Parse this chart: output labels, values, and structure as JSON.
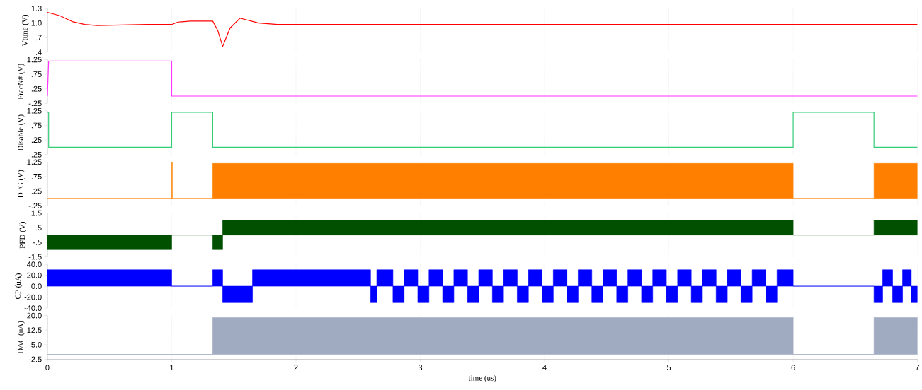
{
  "chart_data": [
    {
      "type": "line",
      "ylabel": "Vtune (V)",
      "color": "#ff0000",
      "grid": "x",
      "tick_labels": "y",
      "xlim": [
        0,
        7
      ],
      "xticks": [
        0,
        1,
        2,
        3,
        4,
        5,
        6,
        7
      ],
      "ylim": [
        0.4,
        1.3
      ],
      "yticks": [
        {
          "value": 1.3,
          "label": "1.3"
        },
        {
          "value": 1.0,
          "label": "1.0"
        },
        {
          "value": 0.7,
          "label": ".7"
        },
        {
          "value": 0.4,
          "label": ".4"
        }
      ],
      "x": [
        0,
        0.1,
        0.2,
        0.3,
        0.4,
        0.6,
        0.8,
        1.0,
        1.05,
        1.15,
        1.33,
        1.37,
        1.41,
        1.47,
        1.55,
        1.7,
        1.85,
        3,
        5,
        7
      ],
      "values": [
        1.22,
        1.15,
        1.03,
        0.97,
        0.95,
        0.96,
        0.97,
        0.97,
        1.02,
        1.04,
        1.04,
        0.85,
        0.52,
        0.9,
        1.1,
        1.0,
        0.97,
        0.97,
        0.97,
        0.97
      ]
    },
    {
      "type": "line",
      "ylabel": "FracN# (V)",
      "color": "#ff33ff",
      "grid": "x",
      "tick_labels": "y",
      "xlim": [
        0,
        7
      ],
      "xticks": [
        0,
        1,
        2,
        3,
        4,
        5,
        6,
        7
      ],
      "ylim": [
        -0.25,
        1.25
      ],
      "yticks": [
        {
          "value": 1.25,
          "label": "1.25"
        },
        {
          "value": 0.75,
          "label": ".75"
        },
        {
          "value": 0.25,
          "label": ".25"
        },
        {
          "value": -0.25,
          "label": "-.25"
        }
      ],
      "x": [
        0,
        0.01,
        1,
        1,
        7
      ],
      "values": [
        0,
        1.2,
        1.2,
        0,
        0
      ]
    },
    {
      "type": "line",
      "ylabel": "Disable (V)",
      "color": "#33cc77",
      "grid": "x",
      "tick_labels": "y",
      "xlim": [
        0,
        7
      ],
      "xticks": [
        0,
        1,
        2,
        3,
        4,
        5,
        6,
        7
      ],
      "ylim": [
        -0.25,
        1.25
      ],
      "yticks": [
        {
          "value": 1.25,
          "label": "1.25"
        },
        {
          "value": 0.75,
          "label": ".75"
        },
        {
          "value": 0.25,
          "label": ".25"
        },
        {
          "value": -0.25,
          "label": "-.25"
        }
      ],
      "x": [
        0,
        0.01,
        0.01,
        1,
        1,
        1.33,
        1.33,
        6,
        6,
        6.65,
        6.65,
        7
      ],
      "values": [
        1.2,
        1.2,
        0,
        0,
        1.2,
        1.2,
        0,
        0,
        1.2,
        1.2,
        0,
        0
      ]
    },
    {
      "type": "area",
      "ylabel": "DPG (V)",
      "color": "#ff8000",
      "grid": "x",
      "tick_labels": "y",
      "xlim": [
        0,
        7
      ],
      "xticks": [
        0,
        1,
        2,
        3,
        4,
        5,
        6,
        7
      ],
      "ylim": [
        -0.25,
        1.25
      ],
      "yticks": [
        {
          "value": 1.25,
          "label": "1.25"
        },
        {
          "value": 0.75,
          "label": ".75"
        },
        {
          "value": 0.25,
          "label": ".25"
        },
        {
          "value": -0.25,
          "label": "-.25"
        }
      ],
      "x": [
        0,
        1,
        1,
        1.005,
        1.005,
        1.33,
        1.33,
        6,
        6,
        6.65,
        6.65,
        7
      ],
      "values": [
        0,
        0,
        1.25,
        1.25,
        0,
        0,
        1.2,
        1.2,
        0,
        0,
        1.2,
        1.2
      ]
    },
    {
      "type": "area",
      "ylabel": "PFD (V)",
      "color": "#005000",
      "grid": "x",
      "tick_labels": "y",
      "xlim": [
        0,
        7
      ],
      "xticks": [
        0,
        1,
        2,
        3,
        4,
        5,
        6,
        7
      ],
      "ylim": [
        -1.5,
        1.5
      ],
      "yticks": [
        {
          "value": 1.5,
          "label": "1.5"
        },
        {
          "value": 0.5,
          "label": ".5"
        },
        {
          "value": -0.5,
          "label": "-.5"
        },
        {
          "value": -1.5,
          "label": "-1.5"
        }
      ],
      "x": [
        0,
        1,
        1,
        1.33,
        1.33,
        1.41,
        1.41,
        6,
        6,
        6.65,
        6.65,
        7
      ],
      "values": [
        -1,
        -1,
        0,
        0,
        -1,
        -1,
        1,
        1,
        0,
        0,
        1,
        1
      ]
    },
    {
      "type": "area",
      "ylabel": "CP (uA)",
      "color": "#0000ff",
      "grid": "x",
      "tick_labels": "y",
      "xlim": [
        0,
        7
      ],
      "xticks": [
        0,
        1,
        2,
        3,
        4,
        5,
        6,
        7
      ],
      "ylim": [
        -40,
        40
      ],
      "yticks": [
        {
          "value": 40,
          "label": "40.0"
        },
        {
          "value": 20,
          "label": "20.0"
        },
        {
          "value": 0,
          "label": "0.0"
        },
        {
          "value": -20,
          "label": "-20.0"
        },
        {
          "value": -40,
          "label": "-40.0"
        }
      ],
      "x": [
        0,
        1,
        1,
        1.33,
        1.33,
        1.41,
        1.41,
        1.65,
        1.65,
        2.6,
        2.6,
        2.65,
        2.65,
        2.78,
        2.78,
        2.87,
        2.87,
        2.98,
        2.98,
        3.07,
        3.07,
        3.18,
        3.18,
        3.27,
        3.27,
        3.38,
        3.38,
        3.47,
        3.47,
        3.58,
        3.58,
        3.67,
        3.67,
        3.78,
        3.78,
        3.87,
        3.87,
        3.98,
        3.98,
        4.07,
        4.07,
        4.18,
        4.18,
        4.27,
        4.27,
        4.38,
        4.38,
        4.47,
        4.47,
        4.58,
        4.58,
        4.67,
        4.67,
        4.78,
        4.78,
        4.87,
        4.87,
        4.98,
        4.98,
        5.07,
        5.07,
        5.18,
        5.18,
        5.27,
        5.27,
        5.38,
        5.38,
        5.47,
        5.47,
        5.58,
        5.58,
        5.67,
        5.67,
        5.78,
        5.78,
        5.87,
        5.87,
        6,
        6,
        6.65,
        6.65,
        6.72,
        6.72,
        6.8,
        6.8,
        6.88,
        6.88,
        6.95,
        6.95,
        7
      ],
      "values": [
        30,
        30,
        0,
        0,
        30,
        30,
        -30,
        -30,
        30,
        30,
        -30,
        -30,
        30,
        30,
        -30,
        -30,
        30,
        30,
        -30,
        -30,
        30,
        30,
        -30,
        -30,
        30,
        30,
        -30,
        -30,
        30,
        30,
        -30,
        -30,
        30,
        30,
        -30,
        -30,
        30,
        30,
        -30,
        -30,
        30,
        30,
        -30,
        -30,
        30,
        30,
        -30,
        -30,
        30,
        30,
        -30,
        -30,
        30,
        30,
        -30,
        -30,
        30,
        30,
        -30,
        -30,
        30,
        30,
        -30,
        -30,
        30,
        30,
        -30,
        -30,
        30,
        30,
        -30,
        -30,
        30,
        30,
        -30,
        -30,
        30,
        30,
        0,
        0,
        -30,
        -30,
        30,
        30,
        -30,
        -30,
        30,
        30,
        -30,
        -30
      ]
    },
    {
      "type": "area",
      "ylabel": "DAC (uA)",
      "xlabel": "time (us)",
      "color": "#a0aac0",
      "grid": "x",
      "xlim": [
        0,
        7
      ],
      "xticks": [
        0,
        1,
        2,
        3,
        4,
        5,
        6,
        7
      ],
      "ylim": [
        -2.5,
        20
      ],
      "yticks": [
        {
          "value": 20,
          "label": "20.0"
        },
        {
          "value": 12.5,
          "label": "12.5"
        },
        {
          "value": 5,
          "label": "5.0"
        },
        {
          "value": -2.5,
          "label": "-2.5"
        }
      ],
      "x": [
        0,
        1.33,
        1.33,
        6,
        6,
        6.65,
        6.65,
        7
      ],
      "values": [
        0,
        0,
        19,
        19,
        0,
        0,
        19,
        19
      ]
    }
  ]
}
